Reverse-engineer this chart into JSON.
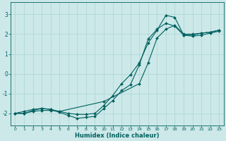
{
  "xlabel": "Humidex (Indice chaleur)",
  "background_color": "#cce8e8",
  "line_color": "#006060",
  "grid_color": "#aad4d4",
  "xlim": [
    -0.5,
    23.5
  ],
  "ylim": [
    -2.6,
    3.6
  ],
  "yticks": [
    -2,
    -1,
    0,
    1,
    2,
    3
  ],
  "xticks": [
    0,
    1,
    2,
    3,
    4,
    5,
    6,
    7,
    8,
    9,
    10,
    11,
    12,
    13,
    14,
    15,
    16,
    17,
    18,
    19,
    20,
    21,
    22,
    23
  ],
  "line1_x": [
    0,
    1,
    2,
    3,
    4,
    5,
    10,
    14,
    15,
    16,
    17,
    18,
    19,
    20,
    21,
    22,
    23
  ],
  "line1_y": [
    -2.0,
    -1.9,
    -1.8,
    -1.75,
    -1.8,
    -1.9,
    -1.4,
    -0.5,
    0.55,
    1.8,
    2.25,
    2.45,
    2.0,
    2.0,
    2.05,
    2.1,
    2.2
  ],
  "line2_x": [
    0,
    1,
    2,
    3,
    4,
    5,
    6,
    7,
    8,
    9,
    10,
    11,
    12,
    13,
    14,
    15,
    16,
    17,
    18,
    19,
    20,
    21,
    22,
    23
  ],
  "line2_y": [
    -2.0,
    -2.0,
    -1.9,
    -1.85,
    -1.85,
    -1.9,
    -2.0,
    -2.05,
    -2.05,
    -2.0,
    -1.6,
    -1.1,
    -0.5,
    -0.05,
    0.55,
    1.55,
    2.2,
    2.95,
    2.85,
    1.95,
    1.9,
    1.95,
    2.05,
    2.15
  ],
  "line3_x": [
    0,
    1,
    2,
    3,
    4,
    5,
    6,
    7,
    8,
    9,
    10,
    11,
    12,
    13,
    14,
    15,
    16,
    17,
    18,
    19,
    20,
    21,
    22,
    23
  ],
  "line3_y": [
    -2.0,
    -2.0,
    -1.85,
    -1.75,
    -1.8,
    -1.95,
    -2.1,
    -2.25,
    -2.2,
    -2.15,
    -1.75,
    -1.35,
    -0.85,
    -0.55,
    0.45,
    1.75,
    2.25,
    2.55,
    2.4,
    1.95,
    1.95,
    2.05,
    2.1,
    2.2
  ]
}
